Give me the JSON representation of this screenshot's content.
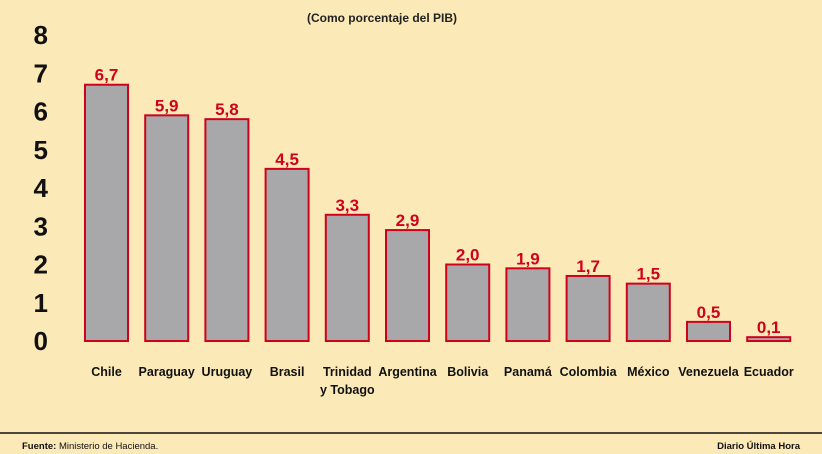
{
  "chart_data": {
    "type": "bar",
    "subtitle": "(Como porcentaje del PIB)",
    "categories": [
      [
        "Chile"
      ],
      [
        "Paraguay"
      ],
      [
        "Uruguay"
      ],
      [
        "Brasil"
      ],
      [
        "Trinidad",
        "y Tobago"
      ],
      [
        "Argentina"
      ],
      [
        "Bolivia"
      ],
      [
        "Panamá"
      ],
      [
        "Colombia"
      ],
      [
        "México"
      ],
      [
        "Venezuela"
      ],
      [
        "Ecuador"
      ]
    ],
    "values": [
      6.7,
      5.9,
      5.8,
      4.5,
      3.3,
      2.9,
      2.0,
      1.9,
      1.7,
      1.5,
      0.5,
      0.1
    ],
    "value_labels": [
      "6,7",
      "5,9",
      "5,8",
      "4,5",
      "3,3",
      "2,9",
      "2,0",
      "1,9",
      "1,7",
      "1,5",
      "0,5",
      "0,1"
    ],
    "ylim": [
      0,
      8
    ],
    "yticks": [
      0,
      1,
      2,
      3,
      4,
      5,
      6,
      7,
      8
    ],
    "bar_fill": "#a8a8ab",
    "bar_stroke": "#d0021b",
    "label_color": "#d0021b",
    "background": "#fce9b8"
  },
  "footer": {
    "source_label": "Fuente:",
    "source_text": " Ministerio de Hacienda.",
    "credit": "Diario Última Hora"
  }
}
